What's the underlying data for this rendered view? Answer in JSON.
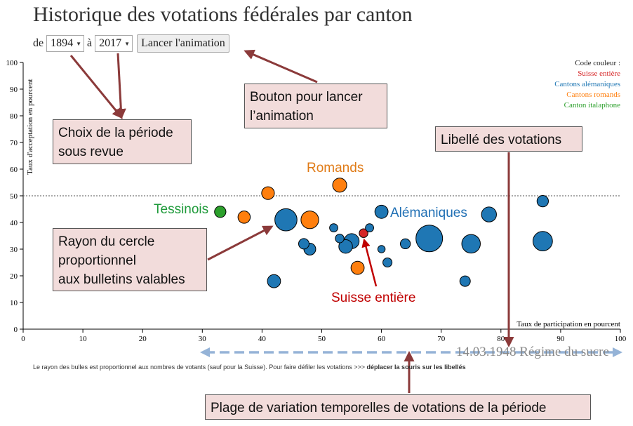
{
  "page": {
    "title": "Historique des votations fédérales par canton",
    "controls": {
      "from_label": "de",
      "from_value": "1894",
      "to_label": "à",
      "to_value": "2017",
      "animate_button": "Lancer l'animation"
    },
    "legend": {
      "title": "Code couleur :",
      "items": [
        {
          "label": "Suisse entière",
          "color": "#d62728"
        },
        {
          "label": "Cantons alémaniques",
          "color": "#1f77b4"
        },
        {
          "label": "Cantons romands",
          "color": "#ff7f0e"
        },
        {
          "label": "Canton italaphone",
          "color": "#2ca02c"
        }
      ]
    },
    "current_vote_label": "14.03.1948 Régime du sucre",
    "footnote_text": "Le rayon des bulles est proportionnel aux nombres de votants (sauf pour la Suisse). Pour faire défiler les votations >>> ",
    "footnote_bold": "déplacer la souris sur les libellés"
  },
  "annotations": {
    "period": "Choix de la période\nsous revue",
    "animate": "Bouton pour lancer\nl’animation",
    "vote_labels": "Libellé des votations",
    "radius": "Rayon du cercle\nproportionnel\naux bulletins valables",
    "time_range": "Plage de variation temporelles de votations de la période",
    "romands": "Romands",
    "tessinois": "Tessinois",
    "alemaniques": "Alémaniques",
    "suisse": "Suisse entière"
  },
  "annotation_colors": {
    "callout_bg": "#f2dcdb",
    "arrow": "#8b3a3a",
    "dashed_arrow": "#95b3d7",
    "romands": "#e07b17",
    "tessinois": "#1e9a3a",
    "alemaniques": "#1f6fb4",
    "suisse": "#c00000"
  },
  "chart_data": {
    "type": "scatter",
    "xlabel": "Taux de participation en pourcent",
    "ylabel": "Taux d'acceptation en pourcent",
    "xlim": [
      0,
      100
    ],
    "ylim": [
      0,
      100
    ],
    "xticks": [
      0,
      10,
      20,
      30,
      40,
      50,
      60,
      70,
      80,
      90,
      100
    ],
    "yticks": [
      0,
      10,
      20,
      30,
      40,
      50,
      60,
      70,
      80,
      90,
      100
    ],
    "reference_line_y": 50,
    "series": [
      {
        "name": "Suisse entière",
        "color": "#d62728",
        "points": [
          {
            "x": 57.0,
            "y": 36.0,
            "size": 1.0
          }
        ]
      },
      {
        "name": "Cantons alémaniques",
        "color": "#1f77b4",
        "points": [
          {
            "x": 44.0,
            "y": 41.0,
            "size": 4.0
          },
          {
            "x": 42.0,
            "y": 18.0,
            "size": 2.0
          },
          {
            "x": 47.0,
            "y": 32.0,
            "size": 1.4
          },
          {
            "x": 48.0,
            "y": 30.0,
            "size": 1.7
          },
          {
            "x": 52.0,
            "y": 38.0,
            "size": 0.9
          },
          {
            "x": 53.0,
            "y": 34.0,
            "size": 1.0
          },
          {
            "x": 54.0,
            "y": 31.0,
            "size": 2.1
          },
          {
            "x": 55.0,
            "y": 33.0,
            "size": 2.4
          },
          {
            "x": 58.0,
            "y": 38.0,
            "size": 0.9
          },
          {
            "x": 60.0,
            "y": 44.0,
            "size": 2.0
          },
          {
            "x": 60.0,
            "y": 30.0,
            "size": 0.7
          },
          {
            "x": 61.0,
            "y": 25.0,
            "size": 1.1
          },
          {
            "x": 64.0,
            "y": 32.0,
            "size": 1.3
          },
          {
            "x": 68.0,
            "y": 34.0,
            "size": 5.0
          },
          {
            "x": 74.0,
            "y": 18.0,
            "size": 1.4
          },
          {
            "x": 75.0,
            "y": 32.0,
            "size": 3.2
          },
          {
            "x": 78.0,
            "y": 43.0,
            "size": 2.4
          },
          {
            "x": 87.0,
            "y": 33.0,
            "size": 3.4
          },
          {
            "x": 87.0,
            "y": 48.0,
            "size": 1.6
          }
        ]
      },
      {
        "name": "Cantons romands",
        "color": "#ff7f0e",
        "points": [
          {
            "x": 37.0,
            "y": 42.0,
            "size": 1.8
          },
          {
            "x": 41.0,
            "y": 51.0,
            "size": 1.9
          },
          {
            "x": 48.0,
            "y": 41.0,
            "size": 3.0
          },
          {
            "x": 53.0,
            "y": 54.0,
            "size": 2.2
          },
          {
            "x": 56.0,
            "y": 23.0,
            "size": 2.0
          }
        ]
      },
      {
        "name": "Canton italaphone",
        "color": "#2ca02c",
        "points": [
          {
            "x": 33.0,
            "y": 44.0,
            "size": 1.6
          }
        ]
      }
    ]
  }
}
